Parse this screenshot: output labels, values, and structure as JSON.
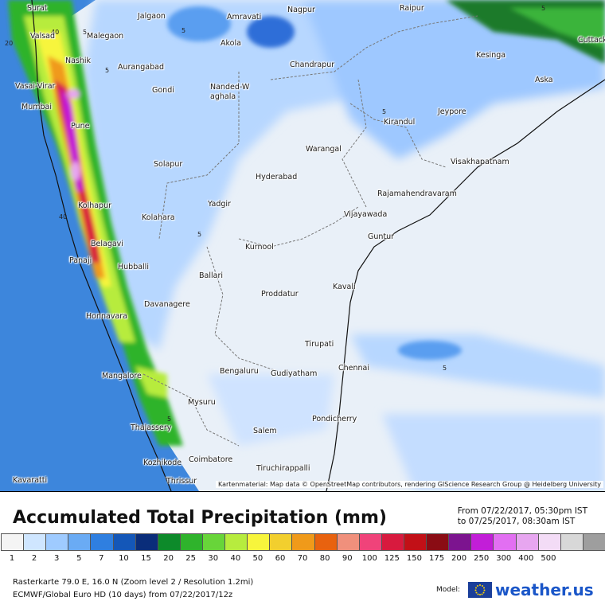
{
  "map": {
    "credit": "Kartenmaterial: Map data © OpenStreetMap contributors, rendering GIScience Research Group @ Heidelberg University",
    "cities": [
      {
        "name": "Surat"
      },
      {
        "name": "Valsad"
      },
      {
        "name": "Jalgaon"
      },
      {
        "name": "Amravati"
      },
      {
        "name": "Nagpur"
      },
      {
        "name": "Raipur"
      },
      {
        "name": "Cuttack"
      },
      {
        "name": "Malegaon"
      },
      {
        "name": "Akola"
      },
      {
        "name": "Kesinga"
      },
      {
        "name": "Nashik"
      },
      {
        "name": "Aurangabad"
      },
      {
        "name": "Chandrapur"
      },
      {
        "name": "Aska"
      },
      {
        "name": "Vasai-Virar"
      },
      {
        "name": "Gondi"
      },
      {
        "name": "Nanded-Waghala"
      },
      {
        "name": "Mumbai"
      },
      {
        "name": "Jeypore"
      },
      {
        "name": "Kirandul"
      },
      {
        "name": "Pune"
      },
      {
        "name": "Warangal"
      },
      {
        "name": "Solapur"
      },
      {
        "name": "Visakhapatnam"
      },
      {
        "name": "Hyderabad"
      },
      {
        "name": "Rajamahendravaram"
      },
      {
        "name": "Kolhapur"
      },
      {
        "name": "Yadgir"
      },
      {
        "name": "Vijayawada"
      },
      {
        "name": "Kolahara"
      },
      {
        "name": "Guntur"
      },
      {
        "name": "Belagavi"
      },
      {
        "name": "Kurnool"
      },
      {
        "name": "Panaji"
      },
      {
        "name": "Hubballi"
      },
      {
        "name": "Ballari"
      },
      {
        "name": "Kavali"
      },
      {
        "name": "Davanagere"
      },
      {
        "name": "Proddatur"
      },
      {
        "name": "Honnavara"
      },
      {
        "name": "Tirupati"
      },
      {
        "name": "Chennai"
      },
      {
        "name": "Bengaluru"
      },
      {
        "name": "Gudiyatham"
      },
      {
        "name": "Mangalore"
      },
      {
        "name": "Mysuru"
      },
      {
        "name": "Pondicherry"
      },
      {
        "name": "Thalassery"
      },
      {
        "name": "Salem"
      },
      {
        "name": "Kozhikode"
      },
      {
        "name": "Coimbatore"
      },
      {
        "name": "Tiruchirappalli"
      },
      {
        "name": "Kavaratti"
      },
      {
        "name": "Thrissur"
      }
    ],
    "contour_labels": [
      "20",
      "5",
      "5",
      "5",
      "40",
      "5",
      "5",
      "5",
      "40",
      "5",
      "5"
    ]
  },
  "title": "Accumulated Total Precipitation (mm)",
  "period": {
    "from": "From 07/22/2017, 05:30pm IST",
    "to": "to 07/25/2017, 08:30am IST"
  },
  "legend": {
    "values": [
      "1",
      "2",
      "3",
      "5",
      "7",
      "10",
      "15",
      "20",
      "25",
      "30",
      "40",
      "50",
      "60",
      "70",
      "80",
      "90",
      "100",
      "125",
      "150",
      "175",
      "200",
      "250",
      "300",
      "400",
      "500"
    ],
    "colors": [
      "#f4f4f4",
      "#cfe6ff",
      "#9fcbff",
      "#6aabf4",
      "#2f7fe0",
      "#1457b8",
      "#0a2d7a",
      "#0d8a2a",
      "#2fb32c",
      "#68d53a",
      "#b7ec3e",
      "#f7f53c",
      "#f2cf2e",
      "#f09a1a",
      "#e8620f",
      "#f0907c",
      "#f0437a",
      "#d81a3e",
      "#c21017",
      "#8a0c14",
      "#7c148f",
      "#c21ed8",
      "#e26ff2",
      "#e7a6f0",
      "#f3dcf6",
      "#d8d8d8",
      "#9e9e9e"
    ]
  },
  "info": {
    "line1": "Rasterkarte 79.0 E, 16.0 N (Zoom level 2 / Resolution 1.2mi)",
    "line2": "ECMWF/Global Euro HD (10 days) from 07/22/2017/12z"
  },
  "brand": {
    "model_label": "Model:",
    "logo": "weather.us"
  }
}
